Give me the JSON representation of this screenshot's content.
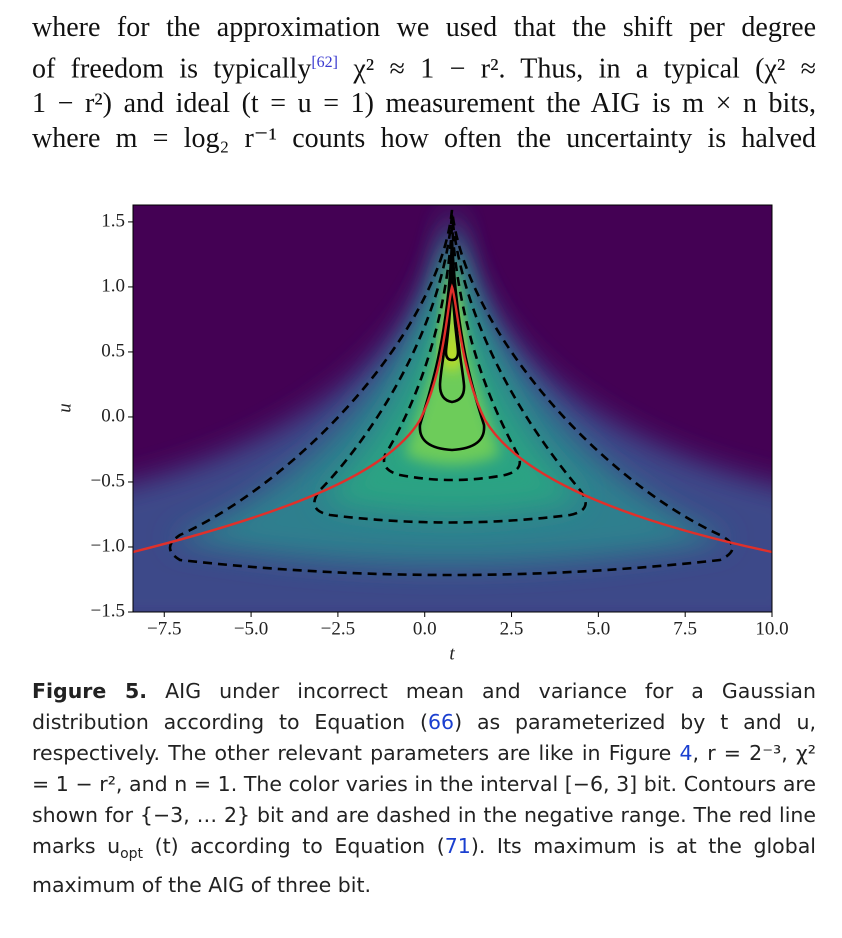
{
  "paragraph": {
    "lines": [
      "where for the approximation we used that the shift per degree",
      "of freedom is typically",
      "χ² ≈ 1 − r². Thus, in a typical (χ² ≈",
      "1 − r²) and ideal (t = u = 1) measurement the AIG is m × n bits,",
      "where m = log₂ r⁻¹ counts how often the uncertainty is halved"
    ],
    "ref": "[62]"
  },
  "chart_data": {
    "type": "contour",
    "xlabel": "t",
    "ylabel": "u",
    "xlim": [
      -8.4,
      10
    ],
    "ylim": [
      -1.5,
      1.63
    ],
    "xticks": [
      {
        "value": -7.5,
        "label": "−7.5"
      },
      {
        "value": -5,
        "label": "−5.0"
      },
      {
        "value": -2.5,
        "label": "−2.5"
      },
      {
        "value": 0,
        "label": "0.0"
      },
      2.5,
      {
        "value": 5,
        "label": "5.0"
      },
      7.5,
      {
        "value": 10,
        "label": "10.0"
      }
    ],
    "yticks": [
      {
        "value": -1.5,
        "label": "−1.5"
      },
      {
        "value": -1,
        "label": "−1.0"
      },
      {
        "value": -0.5,
        "label": "−0.5"
      },
      {
        "value": 0,
        "label": "0.0"
      },
      0.5,
      {
        "value": 1,
        "label": "1.0"
      },
      1.5
    ]
  },
  "caption": {
    "label": "Figure 5.",
    "parts": [
      "AIG under incorrect mean and variance for a Gaussian distribution according to Equation (",
      "66",
      ") as parameterized by t and u, respectively. The other relevant parameters are like in Figure ",
      "4",
      ", r = 2⁻³, χ² = 1 − r², and n = 1. The color varies in the interval [−6, 3] bit. Contours are shown for {−3, … 2} bit and are dashed in the negative range. The red line marks u",
      "opt",
      " (t) according to Equation (",
      "71",
      "). Its maximum is at the global maximum of the AIG of three bit."
    ]
  }
}
